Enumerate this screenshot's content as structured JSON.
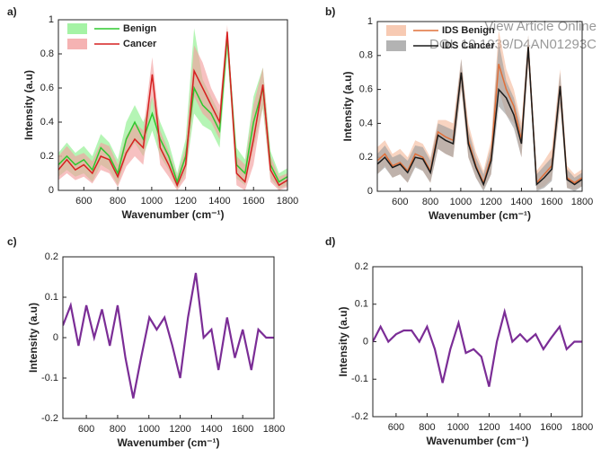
{
  "watermark": [
    "View Article Online",
    "DOI: 10.1039/D4AN01293C"
  ],
  "chart_data": [
    {
      "type": "line",
      "panel": "a)",
      "xlabel": "Wavenumber (cm⁻¹)",
      "ylabel": "Intensity (a.u)",
      "x": [
        450,
        500,
        550,
        600,
        650,
        700,
        750,
        800,
        850,
        900,
        950,
        1003,
        1050,
        1100,
        1150,
        1200,
        1250,
        1300,
        1350,
        1400,
        1445,
        1500,
        1550,
        1600,
        1655,
        1700,
        1750,
        1800
      ],
      "xlim": [
        450,
        1800
      ],
      "xticks": [
        600,
        800,
        1000,
        1200,
        1400,
        1600,
        1800
      ],
      "ylim": [
        0,
        1
      ],
      "yticks": [
        0,
        0.2,
        0.4,
        0.6,
        0.8,
        1
      ],
      "series": [
        {
          "name": "Benign",
          "color": "#2ec82e",
          "band_color": "#8ef08e",
          "values": [
            0.15,
            0.2,
            0.15,
            0.18,
            0.12,
            0.25,
            0.2,
            0.1,
            0.3,
            0.4,
            0.3,
            0.45,
            0.3,
            0.2,
            0.05,
            0.2,
            0.6,
            0.5,
            0.45,
            0.35,
            0.9,
            0.15,
            0.1,
            0.4,
            0.6,
            0.15,
            0.05,
            0.08
          ],
          "lower": [
            0.08,
            0.12,
            0.08,
            0.1,
            0.05,
            0.15,
            0.12,
            0.03,
            0.2,
            0.28,
            0.2,
            0.35,
            0.2,
            0.12,
            0.01,
            0.1,
            0.45,
            0.38,
            0.35,
            0.25,
            0.8,
            0.07,
            0.03,
            0.25,
            0.48,
            0.07,
            0.01,
            0.03
          ],
          "upper": [
            0.22,
            0.28,
            0.22,
            0.26,
            0.2,
            0.33,
            0.28,
            0.18,
            0.4,
            0.5,
            0.4,
            0.55,
            0.4,
            0.28,
            0.1,
            0.3,
            0.95,
            0.65,
            0.55,
            0.45,
            0.95,
            0.25,
            0.18,
            0.55,
            0.72,
            0.23,
            0.1,
            0.13
          ]
        },
        {
          "name": "Cancer",
          "color": "#d62020",
          "band_color": "#f2a0a0",
          "values": [
            0.12,
            0.18,
            0.12,
            0.15,
            0.1,
            0.2,
            0.18,
            0.08,
            0.22,
            0.3,
            0.25,
            0.68,
            0.25,
            0.15,
            0.03,
            0.15,
            0.7,
            0.6,
            0.5,
            0.4,
            0.93,
            0.1,
            0.05,
            0.3,
            0.62,
            0.12,
            0.03,
            0.06
          ],
          "lower": [
            0.06,
            0.1,
            0.06,
            0.08,
            0.04,
            0.12,
            0.1,
            0.02,
            0.14,
            0.2,
            0.15,
            0.55,
            0.15,
            0.08,
            0.0,
            0.07,
            0.55,
            0.45,
            0.4,
            0.3,
            0.85,
            0.03,
            0.0,
            0.15,
            0.5,
            0.05,
            0.0,
            0.02
          ],
          "upper": [
            0.2,
            0.26,
            0.2,
            0.22,
            0.17,
            0.28,
            0.26,
            0.15,
            0.32,
            0.4,
            0.35,
            0.78,
            0.35,
            0.23,
            0.08,
            0.25,
            0.85,
            0.75,
            0.6,
            0.5,
            0.97,
            0.2,
            0.15,
            0.5,
            0.72,
            0.2,
            0.08,
            0.1
          ]
        }
      ]
    },
    {
      "type": "line",
      "panel": "b)",
      "xlabel": "Wavenumber (cm⁻¹)",
      "ylabel": "Intensity (a.u)",
      "x": [
        450,
        500,
        550,
        600,
        650,
        700,
        750,
        800,
        850,
        900,
        950,
        1003,
        1050,
        1100,
        1150,
        1200,
        1250,
        1300,
        1350,
        1400,
        1445,
        1500,
        1550,
        1600,
        1655,
        1700,
        1750,
        1800
      ],
      "xlim": [
        450,
        1800
      ],
      "xticks": [
        600,
        800,
        1000,
        1200,
        1400,
        1600,
        1800
      ],
      "ylim": [
        0,
        1
      ],
      "yticks": [
        0,
        0.2,
        0.4,
        0.6,
        0.8,
        1
      ],
      "series": [
        {
          "name": "IDS Benign",
          "color": "#e0703a",
          "band_color": "#f5bda0",
          "values": [
            0.18,
            0.22,
            0.15,
            0.17,
            0.12,
            0.22,
            0.2,
            0.12,
            0.35,
            0.32,
            0.3,
            0.7,
            0.3,
            0.15,
            0.05,
            0.2,
            0.75,
            0.6,
            0.5,
            0.3,
            0.85,
            0.05,
            0.1,
            0.15,
            0.62,
            0.08,
            0.05,
            0.08
          ],
          "lower": [
            0.1,
            0.15,
            0.08,
            0.1,
            0.05,
            0.15,
            0.12,
            0.05,
            0.25,
            0.22,
            0.2,
            0.6,
            0.2,
            0.08,
            0.01,
            0.1,
            0.6,
            0.45,
            0.4,
            0.2,
            0.75,
            0.01,
            0.03,
            0.07,
            0.5,
            0.02,
            0.01,
            0.03
          ],
          "upper": [
            0.26,
            0.3,
            0.22,
            0.25,
            0.2,
            0.3,
            0.28,
            0.2,
            0.42,
            0.42,
            0.4,
            0.78,
            0.4,
            0.23,
            0.12,
            0.3,
            0.95,
            0.72,
            0.6,
            0.4,
            0.92,
            0.12,
            0.18,
            0.25,
            0.72,
            0.15,
            0.1,
            0.13
          ]
        },
        {
          "name": "IDS Cancer",
          "color": "#1a1a1a",
          "band_color": "#a0a0a0",
          "values": [
            0.16,
            0.2,
            0.14,
            0.16,
            0.11,
            0.2,
            0.19,
            0.11,
            0.33,
            0.3,
            0.28,
            0.7,
            0.28,
            0.14,
            0.04,
            0.18,
            0.6,
            0.55,
            0.45,
            0.28,
            0.85,
            0.04,
            0.08,
            0.13,
            0.62,
            0.07,
            0.04,
            0.07
          ],
          "lower": [
            0.1,
            0.14,
            0.08,
            0.1,
            0.05,
            0.14,
            0.12,
            0.05,
            0.25,
            0.22,
            0.2,
            0.62,
            0.2,
            0.08,
            0.0,
            0.1,
            0.5,
            0.45,
            0.37,
            0.2,
            0.78,
            0.0,
            0.02,
            0.06,
            0.52,
            0.02,
            0.0,
            0.03
          ],
          "upper": [
            0.22,
            0.27,
            0.2,
            0.22,
            0.18,
            0.27,
            0.26,
            0.18,
            0.4,
            0.38,
            0.36,
            0.78,
            0.36,
            0.2,
            0.1,
            0.26,
            0.88,
            0.65,
            0.55,
            0.36,
            0.92,
            0.1,
            0.15,
            0.2,
            0.7,
            0.13,
            0.08,
            0.11
          ]
        }
      ]
    },
    {
      "type": "line",
      "panel": "c)",
      "xlabel": "Wavenumber (cm⁻¹)",
      "ylabel": "Intensity (a.u)",
      "x": [
        450,
        500,
        550,
        600,
        650,
        700,
        750,
        800,
        850,
        900,
        950,
        1003,
        1050,
        1100,
        1150,
        1200,
        1250,
        1300,
        1350,
        1400,
        1445,
        1500,
        1550,
        1600,
        1655,
        1700,
        1750,
        1800
      ],
      "xlim": [
        450,
        1800
      ],
      "xticks": [
        600,
        800,
        1000,
        1200,
        1400,
        1600,
        1800
      ],
      "ylim": [
        -0.2,
        0.2
      ],
      "yticks": [
        -0.2,
        -0.1,
        0,
        0.1,
        0.2
      ],
      "series": [
        {
          "color": "#7b2d96",
          "values": [
            0.03,
            0.08,
            -0.02,
            0.08,
            0.0,
            0.07,
            -0.02,
            0.08,
            -0.05,
            -0.15,
            -0.05,
            0.05,
            0.02,
            0.05,
            -0.02,
            -0.1,
            0.05,
            0.16,
            0.0,
            0.02,
            -0.08,
            0.05,
            -0.05,
            0.02,
            -0.08,
            0.02,
            0.0,
            0.0
          ]
        }
      ]
    },
    {
      "type": "line",
      "panel": "d)",
      "xlabel": "Wavenumber (cm⁻¹)",
      "ylabel": "Intensity (a.u)",
      "x": [
        450,
        500,
        550,
        600,
        650,
        700,
        750,
        800,
        850,
        900,
        950,
        1003,
        1050,
        1100,
        1150,
        1200,
        1250,
        1300,
        1350,
        1400,
        1445,
        1500,
        1550,
        1600,
        1655,
        1700,
        1750,
        1800
      ],
      "xlim": [
        450,
        1800
      ],
      "xticks": [
        600,
        800,
        1000,
        1200,
        1400,
        1600,
        1800
      ],
      "ylim": [
        -0.2,
        0.2
      ],
      "yticks": [
        -0.2,
        -0.1,
        0,
        0.1,
        0.2
      ],
      "series": [
        {
          "color": "#7b2d96",
          "values": [
            0.0,
            0.04,
            0.0,
            0.02,
            0.03,
            0.03,
            0.0,
            0.04,
            -0.02,
            -0.11,
            -0.02,
            0.05,
            -0.03,
            -0.02,
            -0.04,
            -0.12,
            0.0,
            0.08,
            0.0,
            0.02,
            0.0,
            0.02,
            -0.02,
            0.01,
            0.04,
            -0.02,
            0.0,
            0.0
          ]
        }
      ]
    }
  ]
}
